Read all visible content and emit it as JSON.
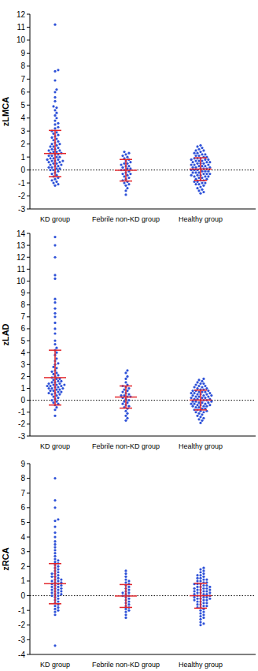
{
  "chart_data": [
    {
      "type": "scatter",
      "y_label": "zLMCA",
      "categories": [
        "KD group",
        "Febrile non-KD group",
        "Healthy group"
      ],
      "values": [
        [
          11.2,
          7.7,
          7.6,
          6.9,
          6.2,
          6.0,
          5.6,
          5.3,
          4.9,
          4.8,
          4.6,
          4.4,
          4.2,
          4.0,
          3.8,
          3.6,
          3.5,
          3.3,
          3.2,
          3.0,
          2.9,
          2.8,
          2.7,
          2.6,
          2.5,
          2.4,
          2.3,
          2.2,
          2.1,
          2.0,
          2.0,
          1.9,
          1.8,
          1.8,
          1.7,
          1.6,
          1.6,
          1.5,
          1.5,
          1.4,
          1.4,
          1.3,
          1.3,
          1.2,
          1.2,
          1.1,
          1.1,
          1.0,
          1.0,
          0.9,
          0.9,
          0.8,
          0.8,
          0.7,
          0.7,
          0.7,
          0.6,
          0.6,
          0.5,
          0.5,
          0.4,
          0.4,
          0.3,
          0.3,
          0.2,
          0.2,
          0.1,
          0.1,
          0.0,
          0.0,
          -0.1,
          -0.2,
          -0.3,
          -0.4,
          -0.5,
          -0.6,
          -0.7,
          -0.8,
          -0.9,
          -1.0,
          -1.1,
          -1.2
        ],
        [
          1.4,
          1.3,
          1.2,
          1.1,
          1.0,
          0.9,
          0.8,
          0.7,
          0.6,
          0.5,
          0.5,
          0.4,
          0.3,
          0.3,
          0.2,
          0.1,
          0.1,
          0.0,
          0.0,
          -0.1,
          -0.2,
          -0.3,
          -0.3,
          -0.4,
          -0.5,
          -0.6,
          -0.7,
          -0.8,
          -0.9,
          -1.0,
          -1.1,
          -1.2,
          -1.4,
          -1.6,
          -1.9
        ],
        [
          1.9,
          1.8,
          1.7,
          1.6,
          1.5,
          1.5,
          1.4,
          1.3,
          1.3,
          1.2,
          1.2,
          1.1,
          1.1,
          1.0,
          1.0,
          0.9,
          0.9,
          0.9,
          0.8,
          0.8,
          0.8,
          0.7,
          0.7,
          0.7,
          0.6,
          0.6,
          0.6,
          0.5,
          0.5,
          0.5,
          0.4,
          0.4,
          0.4,
          0.3,
          0.3,
          0.3,
          0.2,
          0.2,
          0.2,
          0.1,
          0.1,
          0.1,
          0.0,
          0.0,
          0.0,
          -0.1,
          -0.1,
          -0.1,
          -0.2,
          -0.2,
          -0.2,
          -0.3,
          -0.3,
          -0.3,
          -0.4,
          -0.4,
          -0.4,
          -0.5,
          -0.5,
          -0.5,
          -0.6,
          -0.6,
          -0.7,
          -0.7,
          -0.8,
          -0.8,
          -0.9,
          -0.9,
          -1.0,
          -1.0,
          -1.1,
          -1.1,
          -1.2,
          -1.3,
          -1.4,
          -1.5,
          -1.6,
          -1.7,
          -1.8
        ]
      ],
      "mean": [
        1.27,
        -0.02,
        0.07
      ],
      "sd": [
        1.78,
        0.83,
        0.87
      ],
      "color": "#2f52d8",
      "ylim": [
        -3,
        12
      ],
      "yticks": [
        -3,
        -2,
        -1,
        0,
        1,
        2,
        3,
        4,
        5,
        6,
        7,
        8,
        9,
        10,
        11,
        12
      ]
    },
    {
      "type": "scatter",
      "y_label": "zLAD",
      "categories": [
        "KD group",
        "Febrile non-KD group",
        "Healthy group"
      ],
      "values": [
        [
          13.7,
          13.0,
          12.0,
          10.5,
          10.2,
          8.5,
          8.2,
          7.7,
          7.3,
          7.0,
          6.5,
          6.0,
          5.6,
          5.0,
          4.7,
          4.4,
          4.2,
          4.0,
          3.8,
          3.5,
          3.3,
          3.1,
          3.0,
          2.8,
          2.7,
          2.5,
          2.4,
          2.3,
          2.2,
          2.1,
          2.0,
          1.9,
          1.8,
          1.8,
          1.7,
          1.6,
          1.6,
          1.5,
          1.5,
          1.4,
          1.4,
          1.3,
          1.3,
          1.3,
          1.2,
          1.2,
          1.2,
          1.1,
          1.1,
          1.0,
          1.0,
          1.0,
          0.9,
          0.9,
          0.8,
          0.8,
          0.7,
          0.7,
          0.6,
          0.6,
          0.5,
          0.5,
          0.4,
          0.3,
          0.2,
          0.1,
          0.0,
          -0.1,
          -0.2,
          -0.3,
          -0.4,
          -0.6,
          -0.8,
          -1.3
        ],
        [
          2.5,
          2.3,
          2.0,
          1.8,
          1.5,
          1.3,
          1.2,
          1.1,
          1.0,
          0.9,
          0.8,
          0.7,
          0.6,
          0.5,
          0.4,
          0.4,
          0.3,
          0.3,
          0.2,
          0.1,
          0.0,
          -0.1,
          -0.2,
          -0.3,
          -0.4,
          -0.5,
          -0.6,
          -0.7,
          -0.9,
          -1.1,
          -1.3,
          -1.5,
          -1.7
        ],
        [
          1.8,
          1.7,
          1.6,
          1.5,
          1.4,
          1.4,
          1.3,
          1.2,
          1.2,
          1.1,
          1.1,
          1.0,
          1.0,
          0.9,
          0.9,
          0.8,
          0.8,
          0.8,
          0.7,
          0.7,
          0.7,
          0.6,
          0.6,
          0.6,
          0.5,
          0.5,
          0.5,
          0.4,
          0.4,
          0.4,
          0.3,
          0.3,
          0.3,
          0.2,
          0.2,
          0.2,
          0.1,
          0.1,
          0.1,
          0.0,
          0.0,
          0.0,
          -0.1,
          -0.1,
          -0.1,
          -0.2,
          -0.2,
          -0.2,
          -0.3,
          -0.3,
          -0.3,
          -0.4,
          -0.4,
          -0.4,
          -0.5,
          -0.5,
          -0.5,
          -0.6,
          -0.6,
          -0.7,
          -0.7,
          -0.8,
          -0.8,
          -0.9,
          -0.9,
          -1.0,
          -1.0,
          -1.1,
          -1.2,
          -1.3,
          -1.4,
          -1.5,
          -1.6,
          -1.7,
          -1.9
        ]
      ],
      "mean": [
        1.9,
        0.27,
        0.02
      ],
      "sd": [
        2.3,
        0.93,
        0.83
      ],
      "color": "#2f52d8",
      "ylim": [
        -3,
        14
      ],
      "yticks": [
        -3,
        -2,
        -1,
        0,
        1,
        2,
        3,
        4,
        5,
        6,
        7,
        8,
        9,
        10,
        11,
        12,
        13,
        14
      ]
    },
    {
      "type": "scatter",
      "y_label": "zRCA",
      "categories": [
        "KD group",
        "Febrile non-KD group",
        "Healthy group"
      ],
      "values": [
        [
          8.0,
          6.5,
          6.0,
          5.2,
          5.1,
          4.7,
          4.3,
          4.0,
          3.7,
          3.5,
          3.3,
          3.1,
          2.9,
          2.7,
          2.5,
          2.4,
          2.3,
          2.2,
          2.1,
          2.0,
          1.9,
          1.8,
          1.7,
          1.6,
          1.5,
          1.5,
          1.4,
          1.3,
          1.3,
          1.2,
          1.1,
          1.1,
          1.0,
          1.0,
          0.9,
          0.9,
          0.8,
          0.8,
          0.7,
          0.7,
          0.6,
          0.6,
          0.5,
          0.5,
          0.4,
          0.4,
          0.3,
          0.3,
          0.2,
          0.2,
          0.1,
          0.1,
          0.0,
          0.0,
          -0.1,
          -0.2,
          -0.3,
          -0.4,
          -0.5,
          -0.6,
          -0.7,
          -0.8,
          -0.9,
          -1.0,
          -1.1,
          -1.3,
          -3.4
        ],
        [
          1.7,
          1.5,
          1.3,
          1.1,
          1.0,
          0.9,
          0.8,
          0.7,
          0.6,
          0.5,
          0.4,
          0.3,
          0.2,
          0.2,
          0.1,
          0.0,
          0.0,
          -0.1,
          -0.2,
          -0.3,
          -0.4,
          -0.5,
          -0.6,
          -0.7,
          -0.8,
          -0.9,
          -1.0,
          -1.1,
          -1.3,
          -1.5
        ],
        [
          1.9,
          1.8,
          1.7,
          1.6,
          1.5,
          1.4,
          1.4,
          1.3,
          1.2,
          1.2,
          1.1,
          1.1,
          1.0,
          1.0,
          0.9,
          0.9,
          0.8,
          0.8,
          0.8,
          0.7,
          0.7,
          0.6,
          0.6,
          0.6,
          0.5,
          0.5,
          0.5,
          0.4,
          0.4,
          0.4,
          0.3,
          0.3,
          0.3,
          0.2,
          0.2,
          0.2,
          0.1,
          0.1,
          0.1,
          0.0,
          0.0,
          0.0,
          -0.1,
          -0.1,
          -0.1,
          -0.2,
          -0.2,
          -0.2,
          -0.3,
          -0.3,
          -0.3,
          -0.4,
          -0.4,
          -0.5,
          -0.5,
          -0.6,
          -0.6,
          -0.7,
          -0.7,
          -0.8,
          -0.8,
          -0.9,
          -1.0,
          -1.1,
          -1.2,
          -1.3,
          -1.4,
          -1.5,
          -1.6,
          -1.8,
          -1.9,
          -2.0
        ]
      ],
      "mean": [
        0.82,
        -0.02,
        0.0
      ],
      "sd": [
        1.37,
        0.78,
        0.85
      ],
      "color": "#2f52d8",
      "ylim": [
        -4,
        9
      ],
      "yticks": [
        -4,
        -3,
        -2,
        -1,
        0,
        1,
        2,
        3,
        4,
        5,
        6,
        7,
        8,
        9
      ]
    }
  ]
}
